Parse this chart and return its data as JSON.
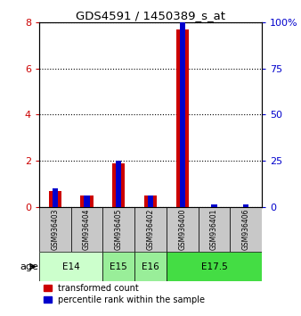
{
  "title": "GDS4591 / 1450389_s_at",
  "samples": [
    "GSM936403",
    "GSM936404",
    "GSM936405",
    "GSM936402",
    "GSM936400",
    "GSM936401",
    "GSM936406"
  ],
  "transformed_count": [
    0.7,
    0.5,
    1.9,
    0.5,
    7.7,
    0.0,
    0.0
  ],
  "percentile_rank": [
    10.0,
    6.25,
    25.0,
    6.25,
    100.0,
    1.5625,
    1.5625
  ],
  "age_groups": [
    {
      "label": "E14",
      "samples": [
        0,
        1
      ],
      "color": "#ccffcc"
    },
    {
      "label": "E15",
      "samples": [
        2
      ],
      "color": "#99ee99"
    },
    {
      "label": "E16",
      "samples": [
        3
      ],
      "color": "#99ee99"
    },
    {
      "label": "E17.5",
      "samples": [
        4,
        5,
        6
      ],
      "color": "#44dd44"
    }
  ],
  "ylim_left": [
    0,
    8
  ],
  "ylim_right": [
    0,
    100
  ],
  "yticks_left": [
    0,
    2,
    4,
    6,
    8
  ],
  "yticks_right": [
    0,
    25,
    50,
    75,
    100
  ],
  "ytick_right_labels": [
    "0",
    "25",
    "50",
    "75",
    "100%"
  ],
  "left_color": "#cc0000",
  "right_color": "#0000cc",
  "red_bar_width": 0.4,
  "blue_bar_width": 0.18,
  "bg_color": "#c8c8c8",
  "legend_red_label": "transformed count",
  "legend_blue_label": "percentile rank within the sample"
}
